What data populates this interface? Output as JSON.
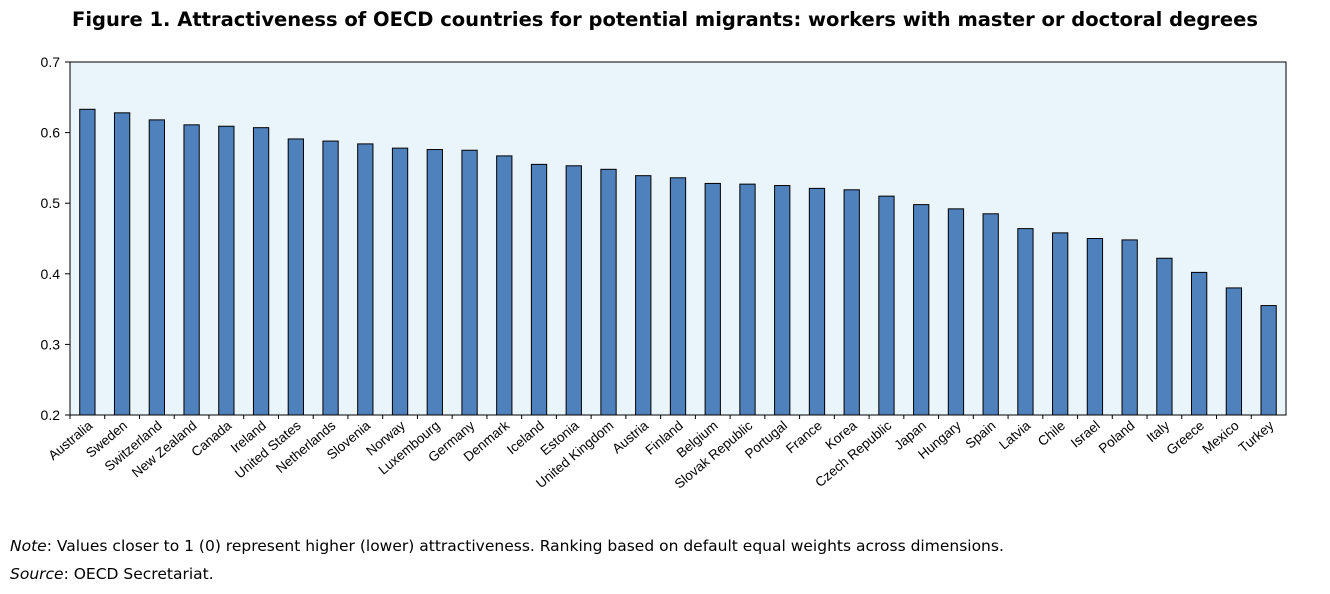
{
  "title": "Figure 1. Attractiveness of OECD countries for potential migrants: workers with master or doctoral degrees",
  "note": {
    "label": "Note",
    "text": ": Values closer to 1 (0) represent higher (lower) attractiveness. Ranking based on default equal weights across dimensions."
  },
  "source": {
    "label": "Source",
    "text": ": OECD Secretariat."
  },
  "colors": {
    "bar_fill": "#4f81bd",
    "bar_stroke": "#000000",
    "plot_bg": "#eaf4fb"
  },
  "chart_data": {
    "type": "bar",
    "title": "",
    "xlabel": "",
    "ylabel": "",
    "ylim": [
      0.2,
      0.7
    ],
    "yticks": [
      "0.2",
      "0.3",
      "0.4",
      "0.5",
      "0.6",
      "0.7"
    ],
    "grid": false,
    "categories": [
      "Australia",
      "Sweden",
      "Switzerland",
      "New Zealand",
      "Canada",
      "Ireland",
      "United States",
      "Netherlands",
      "Slovenia",
      "Norway",
      "Luxembourg",
      "Germany",
      "Denmark",
      "Iceland",
      "Estonia",
      "United Kingdom",
      "Austria",
      "Finland",
      "Belgium",
      "Slovak Republic",
      "Portugal",
      "France",
      "Korea",
      "Czech Republic",
      "Japan",
      "Hungary",
      "Spain",
      "Latvia",
      "Chile",
      "Israel",
      "Poland",
      "Italy",
      "Greece",
      "Mexico",
      "Turkey"
    ],
    "values": [
      0.633,
      0.628,
      0.618,
      0.611,
      0.609,
      0.607,
      0.591,
      0.588,
      0.584,
      0.578,
      0.576,
      0.575,
      0.567,
      0.555,
      0.553,
      0.548,
      0.539,
      0.536,
      0.528,
      0.527,
      0.525,
      0.521,
      0.519,
      0.51,
      0.498,
      0.492,
      0.485,
      0.464,
      0.458,
      0.45,
      0.448,
      0.422,
      0.402,
      0.38,
      0.355
    ]
  }
}
